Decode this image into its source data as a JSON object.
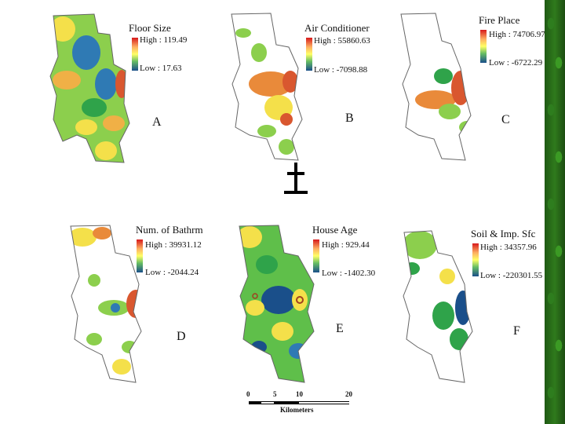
{
  "panels": [
    {
      "letter": "A",
      "title": "Floor Size",
      "high": "High : 119.49",
      "low": "Low : 17.63"
    },
    {
      "letter": "B",
      "title": "Air Conditioner",
      "high": "High : 55860.63",
      "low": "Low : -7098.88"
    },
    {
      "letter": "C",
      "title": "Fire Place",
      "high": "High : 74706.97",
      "low": "Low : -6722.29"
    },
    {
      "letter": "D",
      "title": "Num. of Bathrm",
      "high": "High : 39931.12",
      "low": "Low : -2044.24"
    },
    {
      "letter": "E",
      "title": "House Age",
      "high": "High : 929.44",
      "low": "Low : -1402.30"
    },
    {
      "letter": "F",
      "title": "Soil & Imp. Sfc",
      "high": "High : 34357.96",
      "low": "Low : -220301.55"
    }
  ],
  "scale": {
    "ticks": [
      "0",
      "5",
      "10",
      "20"
    ],
    "units": "Kilometers"
  },
  "colors": {
    "high": "#d7191c",
    "mid_high": "#fdae61",
    "mid": "#ffff66",
    "mid_low": "#66bd63",
    "low": "#1a4f8a"
  },
  "icons": {
    "north_arrow": "north-arrow-icon",
    "border_decoration": "vine-border"
  }
}
